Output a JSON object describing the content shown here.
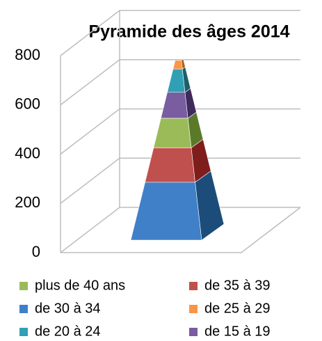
{
  "chart_data": {
    "type": "pyramid",
    "title": "Pyramide des âges 2014",
    "ylim": [
      0,
      800
    ],
    "yticks": [
      0,
      200,
      400,
      600,
      800
    ],
    "grid": true,
    "series": [
      {
        "name": "plus de 40 ans",
        "color": "#9bbb59",
        "side": "#5a7a2a",
        "values": [
          120
        ]
      },
      {
        "name": "de 35 à 39",
        "color": "#c0504d",
        "side": "#7f1d1d",
        "values": [
          140
        ]
      },
      {
        "name": "de 30 à 34",
        "color": "#3f80c8",
        "side": "#1c4d7a",
        "values": [
          235
        ]
      },
      {
        "name": "de 25 à 29",
        "color": "#f79646",
        "side": "#b85c0f",
        "values": [
          35
        ]
      },
      {
        "name": "de 20 à 24",
        "color": "#31a0b5",
        "side": "#1d5f6b",
        "values": [
          95
        ]
      },
      {
        "name": "de 15 à 19",
        "color": "#7a5ca0",
        "side": "#3f2a5c",
        "values": [
          105
        ]
      }
    ],
    "stack_order": [
      2,
      1,
      0,
      5,
      4,
      3
    ]
  }
}
